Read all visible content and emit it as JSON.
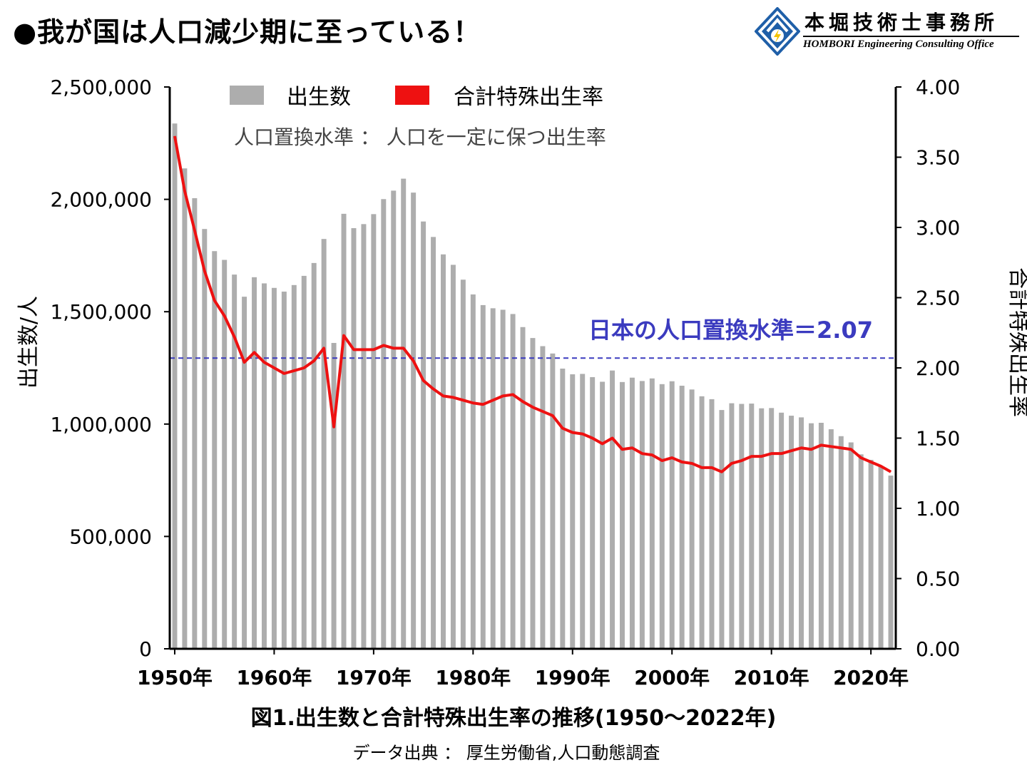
{
  "header": {
    "title": "●我が国は人口減少期に至っている！",
    "logo_name": "本堀技術士事務所",
    "logo_subtitle": "HOMBORI Engineering Consulting Office"
  },
  "chart_data": {
    "type": "bar",
    "title": "",
    "caption": "図1.出生数と合計特殊出生率の推移(1950～2022年)",
    "source": "データ出典 ： 厚生労働省,人口動態調査",
    "annotation": "人口置換水準 ： 人口を一定に保つ出生率",
    "reference_line": {
      "label": "日本の人口置換水準＝2.07",
      "value": 2.07,
      "axis": "right",
      "color": "#3b3bbf"
    },
    "ylabel_left": "出生数/人",
    "ylabel_right": "合計特殊出生率",
    "ylim_left": [
      0,
      2500000
    ],
    "ylim_right": [
      0,
      4
    ],
    "yticks_left": [
      "0",
      "500,000",
      "1,000,000",
      "1,500,000",
      "2,000,000",
      "2,500,000"
    ],
    "yticks_right": [
      "0.00",
      "0.50",
      "1.00",
      "1.50",
      "2.00",
      "2.50",
      "3.00",
      "3.50",
      "4.00"
    ],
    "xticks": [
      "1950年",
      "1960年",
      "1970年",
      "1980年",
      "1990年",
      "2000年",
      "2010年",
      "2020年"
    ],
    "legend_placement": "top-center",
    "grid": false,
    "years": [
      1950,
      1951,
      1952,
      1953,
      1954,
      1955,
      1956,
      1957,
      1958,
      1959,
      1960,
      1961,
      1962,
      1963,
      1964,
      1965,
      1966,
      1967,
      1968,
      1969,
      1970,
      1971,
      1972,
      1973,
      1974,
      1975,
      1976,
      1977,
      1978,
      1979,
      1980,
      1981,
      1982,
      1983,
      1984,
      1985,
      1986,
      1987,
      1988,
      1989,
      1990,
      1991,
      1992,
      1993,
      1994,
      1995,
      1996,
      1997,
      1998,
      1999,
      2000,
      2001,
      2002,
      2003,
      2004,
      2005,
      2006,
      2007,
      2008,
      2009,
      2010,
      2011,
      2012,
      2013,
      2014,
      2015,
      2016,
      2017,
      2018,
      2019,
      2020,
      2021,
      2022
    ],
    "series": [
      {
        "name": "出生数",
        "kind": "bar",
        "axis": "left",
        "color": "#adadad",
        "values": [
          2337507,
          2137689,
          2005162,
          1868040,
          1769580,
          1730692,
          1665278,
          1566713,
          1653469,
          1626088,
          1606041,
          1589372,
          1618616,
          1659521,
          1716761,
          1823697,
          1360974,
          1935647,
          1871839,
          1889815,
          1934239,
          2000973,
          2038682,
          2091983,
          2029989,
          1901440,
          1832617,
          1755100,
          1708643,
          1642580,
          1576889,
          1529455,
          1515392,
          1508687,
          1489780,
          1431577,
          1382946,
          1346658,
          1314006,
          1246802,
          1221585,
          1223245,
          1208989,
          1188282,
          1238328,
          1187064,
          1206555,
          1191665,
          1203147,
          1177669,
          1190547,
          1170662,
          1153855,
          1123610,
          1110721,
          1062530,
          1092674,
          1089818,
          1091156,
          1070036,
          1071305,
          1050806,
          1037232,
          1029817,
          1003609,
          1005721,
          976978,
          946146,
          918400,
          865239,
          840835,
          811622,
          770759
        ]
      },
      {
        "name": "合計特殊出生率",
        "kind": "line",
        "axis": "right",
        "color": "#ee1111",
        "values": [
          3.65,
          3.26,
          2.98,
          2.69,
          2.48,
          2.37,
          2.22,
          2.04,
          2.11,
          2.04,
          2.0,
          1.96,
          1.98,
          2.0,
          2.05,
          2.14,
          1.58,
          2.23,
          2.13,
          2.13,
          2.13,
          2.16,
          2.14,
          2.14,
          2.05,
          1.91,
          1.85,
          1.8,
          1.79,
          1.77,
          1.75,
          1.74,
          1.77,
          1.8,
          1.81,
          1.76,
          1.72,
          1.69,
          1.66,
          1.57,
          1.54,
          1.53,
          1.5,
          1.46,
          1.5,
          1.42,
          1.43,
          1.39,
          1.38,
          1.34,
          1.36,
          1.33,
          1.32,
          1.29,
          1.29,
          1.26,
          1.32,
          1.34,
          1.37,
          1.37,
          1.39,
          1.39,
          1.41,
          1.43,
          1.42,
          1.45,
          1.44,
          1.43,
          1.42,
          1.36,
          1.33,
          1.3,
          1.26
        ]
      }
    ]
  }
}
